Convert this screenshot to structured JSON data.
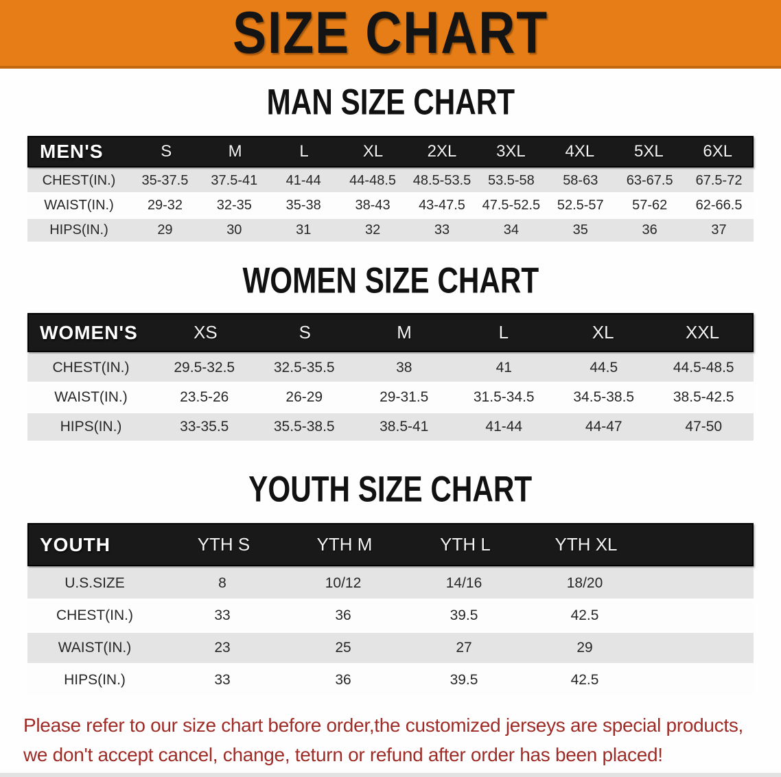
{
  "banner": {
    "title": "SIZE CHART"
  },
  "sections": {
    "men": {
      "heading": "MAN SIZE CHART"
    },
    "women": {
      "heading": "WOMEN SIZE CHART"
    },
    "youth": {
      "heading": "YOUTH SIZE CHART"
    }
  },
  "tables": {
    "men": {
      "label": "MEN'S",
      "columns": [
        "S",
        "M",
        "L",
        "XL",
        "2XL",
        "3XL",
        "4XL",
        "5XL",
        "6XL"
      ],
      "rows": [
        {
          "label": "CHEST(IN.)",
          "values": [
            "35-37.5",
            "37.5-41",
            "41-44",
            "44-48.5",
            "48.5-53.5",
            "53.5-58",
            "58-63",
            "63-67.5",
            "67.5-72"
          ]
        },
        {
          "label": "WAIST(IN.)",
          "values": [
            "29-32",
            "32-35",
            "35-38",
            "38-43",
            "43-47.5",
            "47.5-52.5",
            "52.5-57",
            "57-62",
            "62-66.5"
          ]
        },
        {
          "label": "HIPS(IN.)",
          "values": [
            "29",
            "30",
            "31",
            "32",
            "33",
            "34",
            "35",
            "36",
            "37"
          ]
        }
      ]
    },
    "women": {
      "label": "WOMEN'S",
      "columns": [
        "XS",
        "S",
        "M",
        "L",
        "XL",
        "XXL"
      ],
      "rows": [
        {
          "label": "CHEST(IN.)",
          "values": [
            "29.5-32.5",
            "32.5-35.5",
            "38",
            "41",
            "44.5",
            "44.5-48.5"
          ]
        },
        {
          "label": "WAIST(IN.)",
          "values": [
            "23.5-26",
            "26-29",
            "29-31.5",
            "31.5-34.5",
            "34.5-38.5",
            "38.5-42.5"
          ]
        },
        {
          "label": "HIPS(IN.)",
          "values": [
            "33-35.5",
            "35.5-38.5",
            "38.5-41",
            "41-44",
            "44-47",
            "47-50"
          ]
        }
      ]
    },
    "youth": {
      "label": "YOUTH",
      "columns": [
        "YTH S",
        "YTH M",
        "YTH L",
        "YTH XL"
      ],
      "rows": [
        {
          "label": "U.S.SIZE",
          "values": [
            "8",
            "10/12",
            "14/16",
            "18/20"
          ]
        },
        {
          "label": "CHEST(IN.)",
          "values": [
            "33",
            "36",
            "39.5",
            "42.5"
          ]
        },
        {
          "label": "WAIST(IN.)",
          "values": [
            "23",
            "25",
            "27",
            "29"
          ]
        },
        {
          "label": "HIPS(IN.)",
          "values": [
            "33",
            "36",
            "39.5",
            "42.5"
          ]
        }
      ]
    }
  },
  "footer": {
    "line1": "Please refer to our size chart before order,the customized jerseys are special products,",
    "line2": "we don't accept cancel, change, teturn or refund after order has been placed!"
  },
  "colors": {
    "banner_orange": "#e67d16",
    "banner_border": "#c4680f",
    "header_black": "#191919",
    "stripe_gray": "#e4e4e4",
    "footer_red": "#9e2b26"
  }
}
